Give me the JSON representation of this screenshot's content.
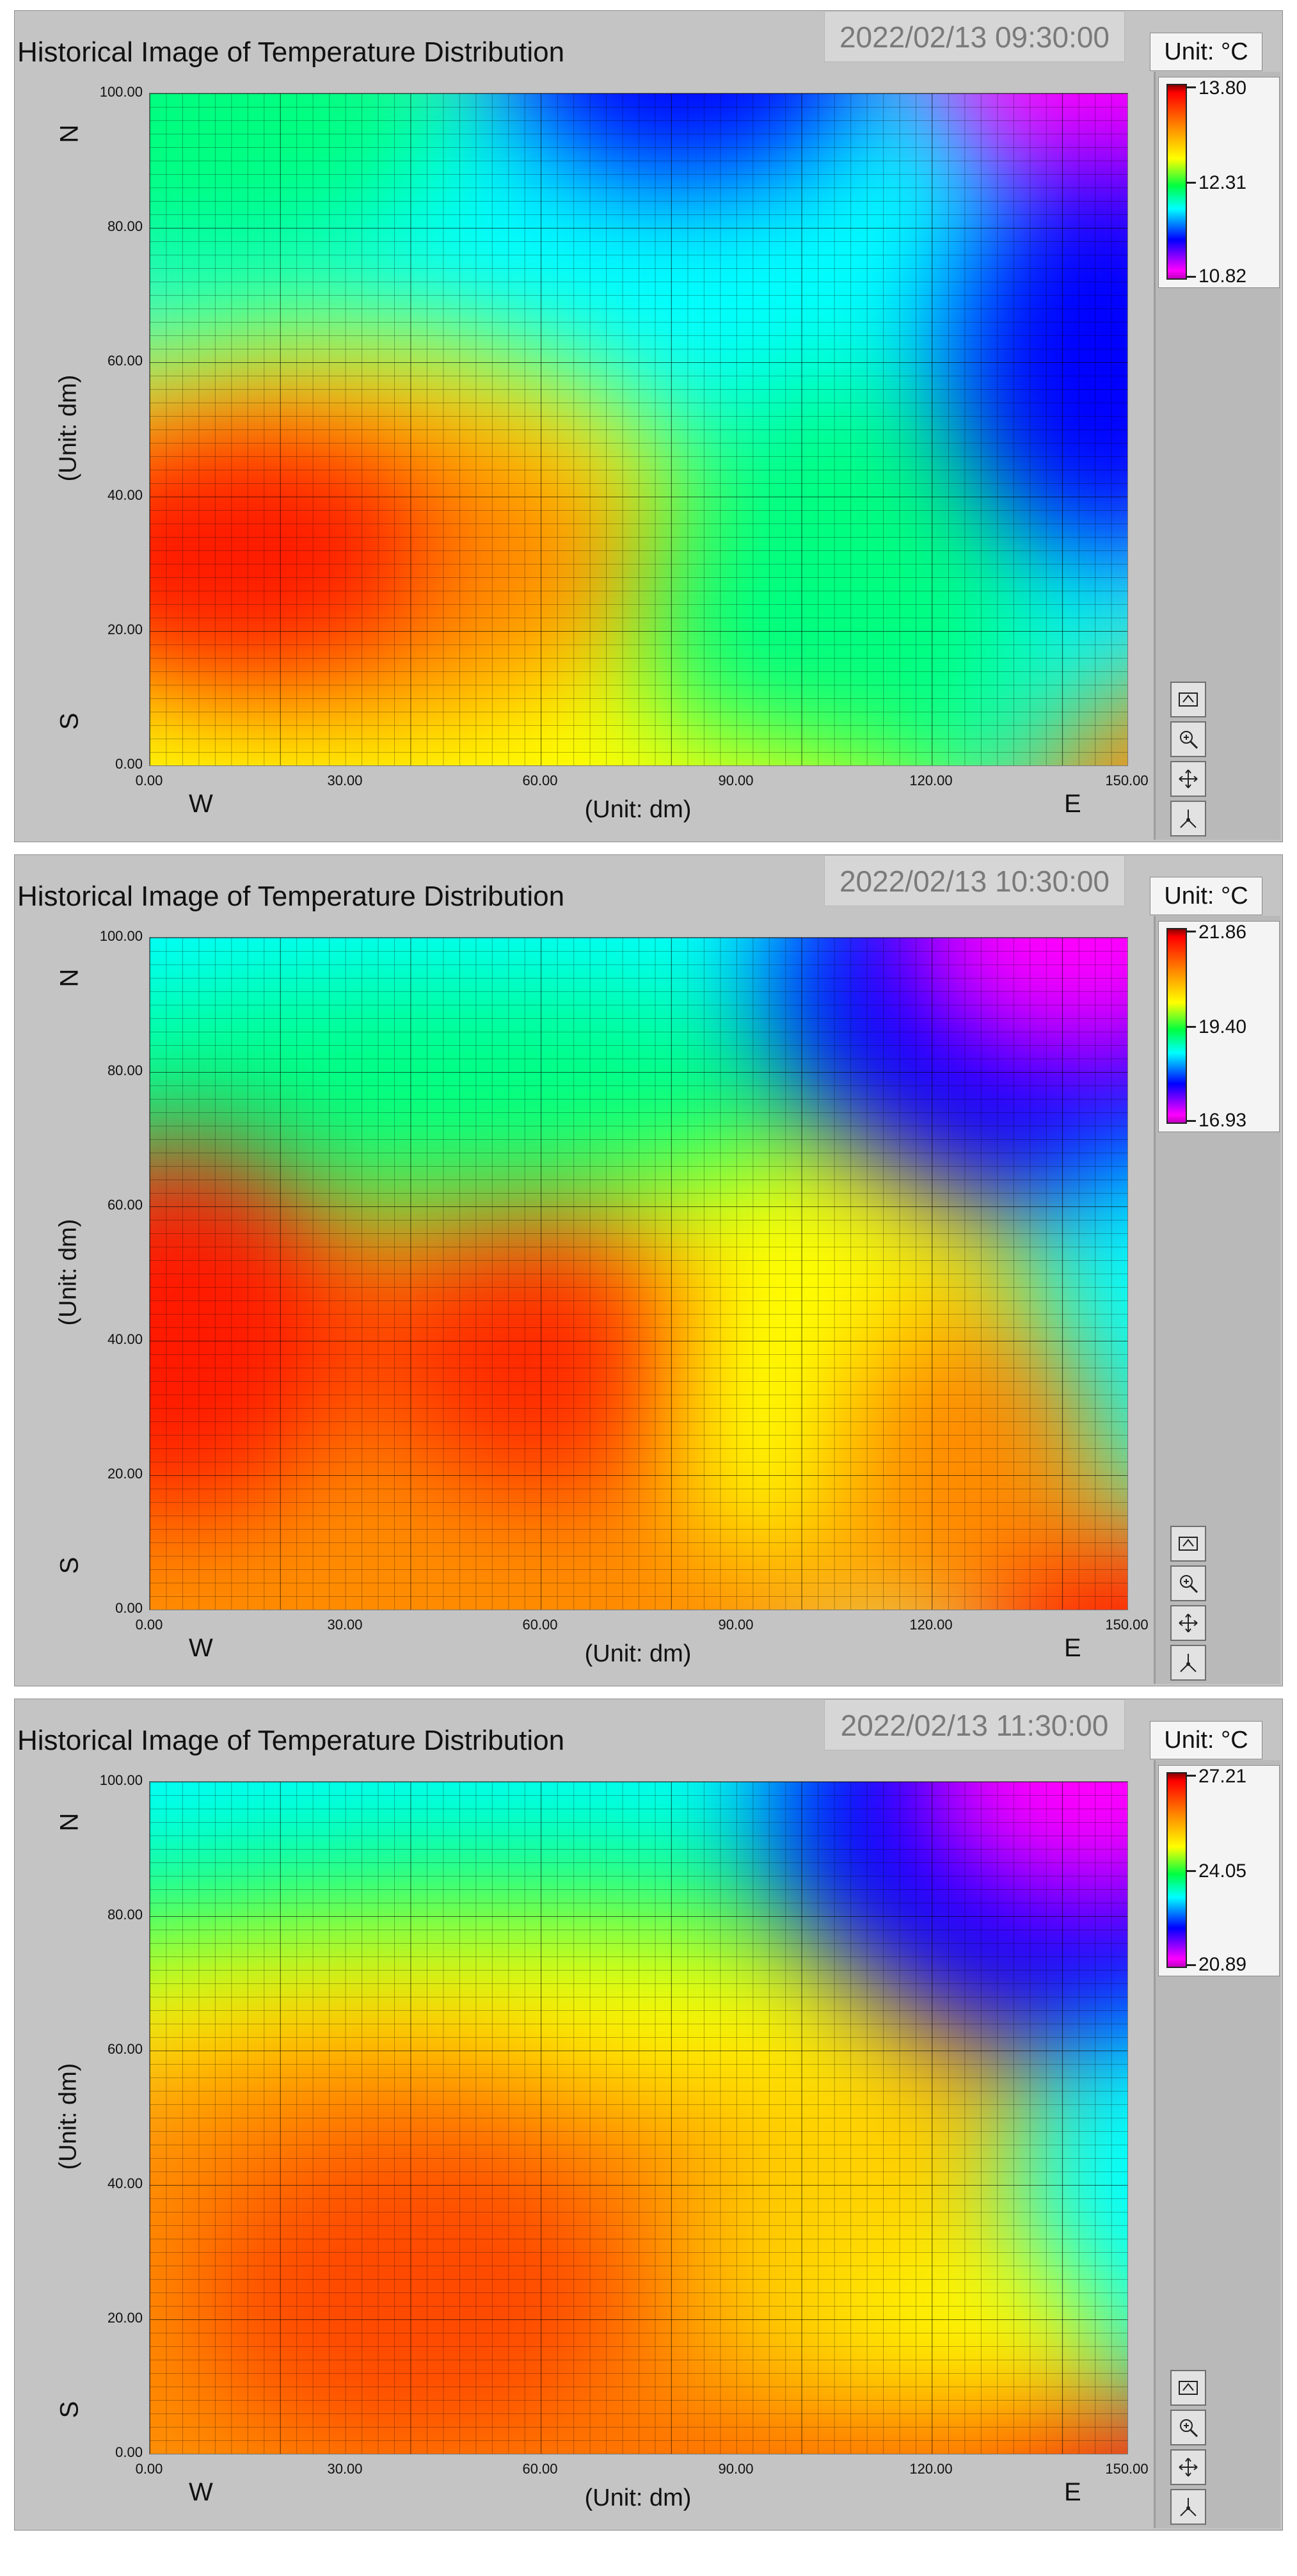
{
  "panels": [
    {
      "title": "Historical Image of Temperature Distribution",
      "timestamp": "2022/02/13 09:30:00",
      "unit_label": "Unit: °C",
      "scale": {
        "max": "13.80",
        "mid": "12.31",
        "min": "10.82"
      },
      "y_axis_title": "(Unit: dm)",
      "x_axis_title": "(Unit: dm)",
      "y_ticks": [
        "100.00",
        "80.00",
        "60.00",
        "40.00",
        "20.00",
        "0.00"
      ],
      "x_ticks": [
        "0.00",
        "30.00",
        "60.00",
        "90.00",
        "120.00",
        "150.00"
      ],
      "compass": {
        "north": "N",
        "south": "S",
        "west": "W",
        "east": "E"
      }
    },
    {
      "title": "Historical Image of Temperature Distribution",
      "timestamp": "2022/02/13 10:30:00",
      "unit_label": "Unit: °C",
      "scale": {
        "max": "21.86",
        "mid": "19.40",
        "min": "16.93"
      },
      "y_axis_title": "(Unit: dm)",
      "x_axis_title": "(Unit: dm)",
      "y_ticks": [
        "100.00",
        "80.00",
        "60.00",
        "40.00",
        "20.00",
        "0.00"
      ],
      "x_ticks": [
        "0.00",
        "30.00",
        "60.00",
        "90.00",
        "120.00",
        "150.00"
      ],
      "compass": {
        "north": "N",
        "south": "S",
        "west": "W",
        "east": "E"
      }
    },
    {
      "title": "Historical Image of Temperature Distribution",
      "timestamp": "2022/02/13 11:30:00",
      "unit_label": "Unit: °C",
      "scale": {
        "max": "27.21",
        "mid": "24.05",
        "min": "20.89"
      },
      "y_axis_title": "(Unit: dm)",
      "x_axis_title": "(Unit: dm)",
      "y_ticks": [
        "100.00",
        "80.00",
        "60.00",
        "40.00",
        "20.00",
        "0.00"
      ],
      "x_ticks": [
        "0.00",
        "30.00",
        "60.00",
        "90.00",
        "120.00",
        "150.00"
      ],
      "compass": {
        "north": "N",
        "south": "S",
        "west": "W",
        "east": "E"
      }
    }
  ],
  "colors": {
    "magenta": "#ff00ff",
    "blue": "#0000ff",
    "cyan": "#00ffff",
    "green": "#00ff40",
    "yellow": "#ffff00",
    "orange": "#ff8c00",
    "red": "#ff0000"
  },
  "toolbar_icons": [
    "autoscale-icon",
    "zoom-icon",
    "pan-icon",
    "cursor-icon"
  ]
}
